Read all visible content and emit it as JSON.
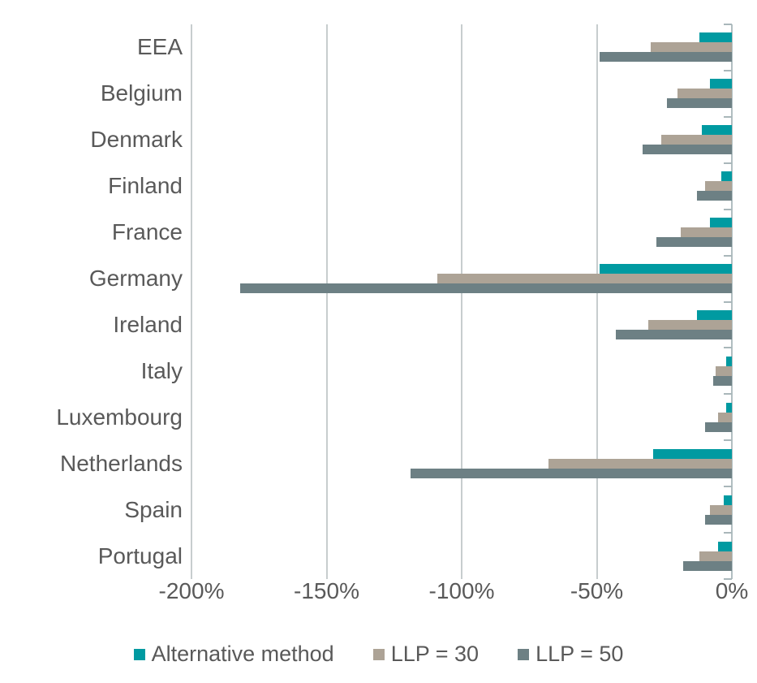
{
  "chart_data": {
    "type": "bar",
    "orientation": "horizontal",
    "title": "",
    "categories": [
      "EEA",
      "Belgium",
      "Denmark",
      "Finland",
      "France",
      "Germany",
      "Ireland",
      "Italy",
      "Luxembourg",
      "Netherlands",
      "Spain",
      "Portugal"
    ],
    "series": [
      {
        "name": "Alternative method",
        "color": "#009aa1",
        "values": [
          -12,
          -8,
          -11,
          -4,
          -8,
          -49,
          -13,
          -2,
          -2,
          -29,
          -3,
          -5
        ]
      },
      {
        "name": "LLP = 30",
        "color": "#ada396",
        "values": [
          -30,
          -20,
          -26,
          -10,
          -19,
          -109,
          -31,
          -6,
          -5,
          -68,
          -8,
          -12
        ]
      },
      {
        "name": "LLP = 50",
        "color": "#6d8084",
        "values": [
          -49,
          -24,
          -33,
          -13,
          -28,
          -182,
          -43,
          -7,
          -10,
          -119,
          -10,
          -18
        ]
      }
    ],
    "xlim": [
      -200,
      0
    ],
    "x_tick_values": [
      -200,
      -150,
      -100,
      -50,
      0
    ],
    "x_tick_labels": [
      "-200%",
      "-150%",
      "-100%",
      "-50%",
      "0%"
    ],
    "unit": "%",
    "grid": true,
    "legend_position": "bottom"
  },
  "colors": {
    "text": "#595959",
    "gridline": "#c7cdce",
    "axis": "#b1bec1",
    "background": "#ffffff"
  }
}
